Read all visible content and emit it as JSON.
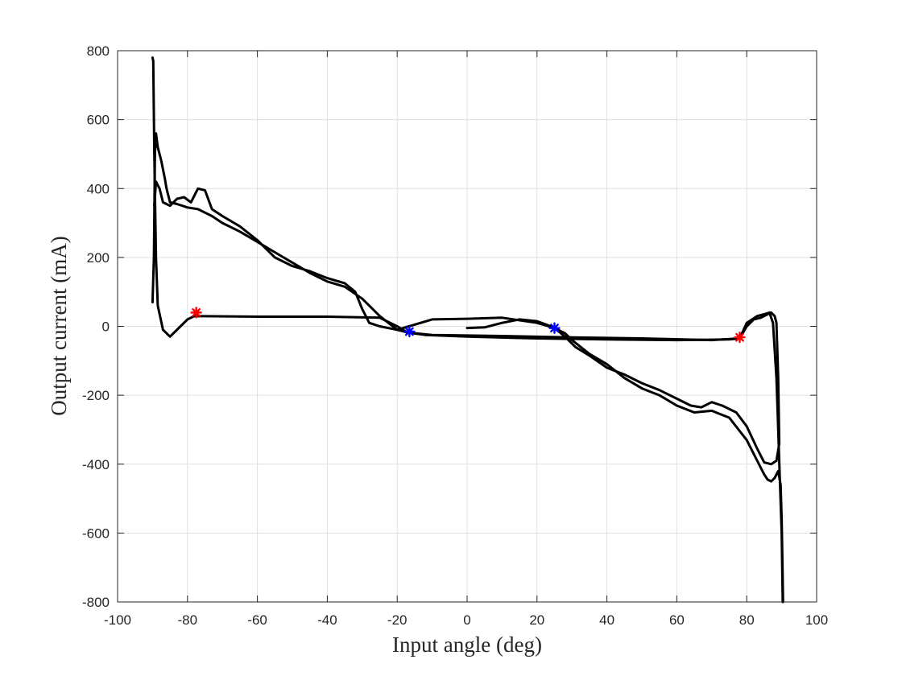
{
  "chart_data": {
    "type": "line",
    "title": "",
    "xlabel": "Input angle (deg)",
    "ylabel": "Output current (mA)",
    "xlim": [
      -100,
      100
    ],
    "ylim": [
      -800,
      800
    ],
    "xticks": [
      -100,
      -80,
      -60,
      -40,
      -20,
      0,
      20,
      40,
      60,
      80,
      100
    ],
    "yticks": [
      -800,
      -600,
      -400,
      -200,
      0,
      200,
      400,
      600,
      800
    ],
    "grid": true,
    "legend": "none",
    "colors": {
      "line": "#000000",
      "red_marker": "#ff0000",
      "blue_marker": "#0000ff"
    },
    "series": [
      {
        "color": "#000000",
        "points": [
          [
            0,
            -5
          ],
          [
            5,
            -3
          ],
          [
            10,
            10
          ],
          [
            15,
            20
          ],
          [
            20,
            15
          ],
          [
            24,
            0
          ],
          [
            28,
            -20
          ],
          [
            30,
            -40
          ],
          [
            35,
            -80
          ],
          [
            40,
            -110
          ],
          [
            45,
            -150
          ],
          [
            50,
            -180
          ],
          [
            55,
            -200
          ],
          [
            60,
            -230
          ],
          [
            65,
            -250
          ],
          [
            70,
            -245
          ],
          [
            75,
            -265
          ],
          [
            80,
            -330
          ],
          [
            83,
            -390
          ],
          [
            85,
            -430
          ],
          [
            86,
            -445
          ],
          [
            87,
            -450
          ],
          [
            88,
            -440
          ],
          [
            89,
            -420
          ],
          [
            89.7,
            -460
          ],
          [
            90,
            -560
          ],
          [
            90.2,
            -680
          ],
          [
            90.4,
            -800
          ]
        ]
      },
      {
        "color": "#000000",
        "points": [
          [
            89.3,
            -340
          ],
          [
            89,
            -150
          ],
          [
            88.5,
            10
          ],
          [
            88,
            30
          ],
          [
            87,
            40
          ],
          [
            86,
            35
          ],
          [
            84,
            25
          ],
          [
            82,
            20
          ],
          [
            80,
            0
          ],
          [
            78,
            -35
          ],
          [
            70,
            -40
          ],
          [
            50,
            -35
          ],
          [
            30,
            -32
          ],
          [
            10,
            -28
          ],
          [
            -10,
            -25
          ],
          [
            -17,
            -18
          ],
          [
            -20,
            0
          ],
          [
            -25,
            25
          ],
          [
            -40,
            28
          ],
          [
            -60,
            28
          ],
          [
            -78,
            30
          ],
          [
            -80,
            20
          ],
          [
            -82,
            0
          ],
          [
            -85,
            -30
          ],
          [
            -87,
            -10
          ],
          [
            -88.5,
            60
          ],
          [
            -89,
            200
          ],
          [
            -89.5,
            500
          ],
          [
            -89.8,
            770
          ],
          [
            -90,
            780
          ]
        ]
      },
      {
        "color": "#000000",
        "points": [
          [
            -90,
            70
          ],
          [
            -89.6,
            200
          ],
          [
            -89.3,
            500
          ],
          [
            -89,
            560
          ],
          [
            -88.5,
            520
          ],
          [
            -87.5,
            480
          ],
          [
            -86.5,
            430
          ],
          [
            -86,
            400
          ],
          [
            -85,
            360
          ],
          [
            -83,
            355
          ],
          [
            -80,
            345
          ],
          [
            -77,
            340
          ],
          [
            -73,
            320
          ],
          [
            -70,
            300
          ],
          [
            -65,
            275
          ],
          [
            -60,
            245
          ],
          [
            -55,
            215
          ],
          [
            -50,
            185
          ],
          [
            -45,
            155
          ],
          [
            -40,
            130
          ],
          [
            -35,
            115
          ],
          [
            -30,
            80
          ],
          [
            -25,
            30
          ],
          [
            -20,
            -10
          ],
          [
            -17,
            -18
          ],
          [
            -12,
            -25
          ],
          [
            0,
            -30
          ],
          [
            20,
            -35
          ],
          [
            40,
            -38
          ],
          [
            60,
            -40
          ],
          [
            75,
            -38
          ],
          [
            78,
            -35
          ],
          [
            80,
            10
          ],
          [
            83,
            30
          ],
          [
            85,
            35
          ],
          [
            86.5,
            40
          ],
          [
            87.5,
            10
          ],
          [
            88.5,
            -150
          ],
          [
            89,
            -300
          ],
          [
            89.5,
            -450
          ],
          [
            90,
            -600
          ],
          [
            90.3,
            -800
          ]
        ]
      },
      {
        "color": "#000000",
        "points": [
          [
            -89.5,
            350
          ],
          [
            -89,
            420
          ],
          [
            -88,
            400
          ],
          [
            -87,
            360
          ],
          [
            -85,
            350
          ],
          [
            -83,
            370
          ],
          [
            -81,
            375
          ],
          [
            -79,
            360
          ],
          [
            -77,
            400
          ],
          [
            -75,
            395
          ],
          [
            -73,
            340
          ],
          [
            -70,
            320
          ],
          [
            -65,
            290
          ],
          [
            -60,
            250
          ],
          [
            -55,
            200
          ],
          [
            -50,
            175
          ],
          [
            -45,
            160
          ],
          [
            -40,
            140
          ],
          [
            -35,
            125
          ],
          [
            -32,
            100
          ],
          [
            -30,
            50
          ],
          [
            -28,
            10
          ],
          [
            -25,
            0
          ],
          [
            -20,
            -10
          ],
          [
            -10,
            20
          ],
          [
            0,
            22
          ],
          [
            10,
            25
          ],
          [
            20,
            10
          ],
          [
            25,
            -5
          ],
          [
            28,
            -30
          ],
          [
            31,
            -60
          ],
          [
            35,
            -85
          ],
          [
            40,
            -120
          ],
          [
            45,
            -140
          ],
          [
            50,
            -165
          ],
          [
            55,
            -185
          ],
          [
            60,
            -210
          ],
          [
            64,
            -230
          ],
          [
            67,
            -235
          ],
          [
            70,
            -220
          ],
          [
            73,
            -230
          ],
          [
            77,
            -250
          ],
          [
            80,
            -290
          ],
          [
            83,
            -355
          ],
          [
            85,
            -395
          ],
          [
            87,
            -400
          ],
          [
            88.5,
            -390
          ],
          [
            89.3,
            -340
          ]
        ]
      }
    ],
    "markers": [
      {
        "x": -77.5,
        "y": 40,
        "color": "#ff0000"
      },
      {
        "x": -16.5,
        "y": -15,
        "color": "#0000ff"
      },
      {
        "x": 25,
        "y": -5,
        "color": "#0000ff"
      },
      {
        "x": 78,
        "y": -32,
        "color": "#ff0000"
      }
    ]
  }
}
